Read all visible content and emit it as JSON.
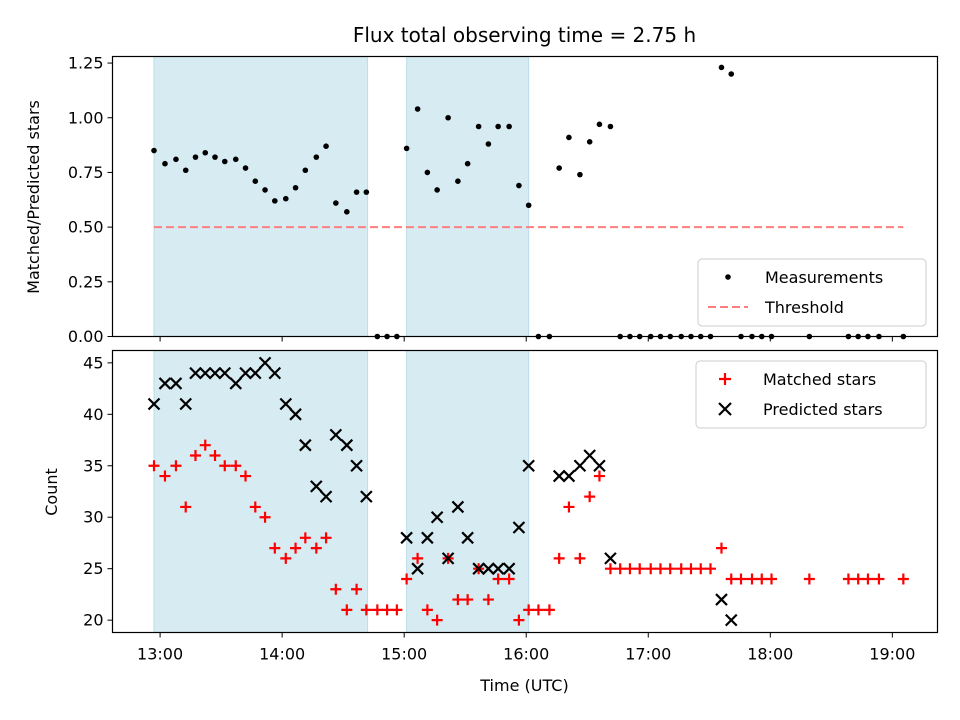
{
  "figure": {
    "title": "Flux total observing time = 2.75 h",
    "xlabel": "Time (UTC)",
    "x_tick_labels": [
      "13:00",
      "14:00",
      "15:00",
      "16:00",
      "17:00",
      "18:00",
      "19:00"
    ]
  },
  "chart_data": [
    {
      "type": "scatter",
      "ylabel": "Matched/Predicted stars",
      "x_unit": "hours UTC",
      "xlim": [
        12.61,
        19.37
      ],
      "ylim": [
        0,
        1.28
      ],
      "yticks": [
        "0.00",
        "0.25",
        "0.50",
        "0.75",
        "1.00",
        "1.25"
      ],
      "shaded_spans": [
        [
          12.95,
          14.7
        ],
        [
          15.02,
          16.02
        ]
      ],
      "shaded_color": "#add8e6",
      "legend_position": "lower right",
      "series": [
        {
          "name": "Measurements",
          "marker": "dot",
          "color": "#000000",
          "x": [
            12.95,
            13.04,
            13.13,
            13.21,
            13.29,
            13.37,
            13.45,
            13.53,
            13.62,
            13.7,
            13.78,
            13.86,
            13.94,
            14.03,
            14.11,
            14.19,
            14.28,
            14.36,
            14.44,
            14.53,
            14.61,
            14.69,
            14.78,
            14.86,
            14.94,
            15.02,
            15.11,
            15.19,
            15.27,
            15.36,
            15.44,
            15.52,
            15.61,
            15.69,
            15.77,
            15.86,
            15.94,
            16.02,
            16.1,
            16.19,
            16.27,
            16.35,
            16.44,
            16.52,
            16.6,
            16.69,
            16.77,
            16.85,
            16.93,
            17.02,
            17.1,
            17.18,
            17.27,
            17.35,
            17.43,
            17.51,
            17.6,
            17.68,
            17.76,
            17.85,
            17.93,
            18.01,
            18.32,
            18.64,
            18.72,
            18.8,
            18.89,
            19.09
          ],
          "y": [
            0.85,
            0.79,
            0.81,
            0.76,
            0.82,
            0.84,
            0.82,
            0.8,
            0.81,
            0.77,
            0.71,
            0.67,
            0.62,
            0.63,
            0.68,
            0.76,
            0.82,
            0.87,
            0.61,
            0.57,
            0.66,
            0.66,
            0.0,
            0.0,
            0.0,
            0.86,
            1.04,
            0.75,
            0.67,
            1.0,
            0.71,
            0.79,
            0.96,
            0.88,
            0.96,
            0.96,
            0.69,
            0.6,
            0.0,
            0.0,
            0.77,
            0.91,
            0.74,
            0.89,
            0.97,
            0.96,
            0.0,
            0.0,
            0.0,
            0.0,
            0.0,
            0.0,
            0.0,
            0.0,
            0.0,
            0.0,
            1.23,
            1.2,
            0.0,
            0.0,
            0.0,
            0.0,
            0.0,
            0.0,
            0.0,
            0.0,
            0.0,
            0.0
          ]
        },
        {
          "name": "Threshold",
          "marker": "dashed-line",
          "color": "#ff7f7f",
          "x": [
            12.95,
            19.09
          ],
          "y": [
            0.5,
            0.5
          ]
        }
      ]
    },
    {
      "type": "scatter",
      "ylabel": "Count",
      "x_unit": "hours UTC",
      "xlim": [
        12.61,
        19.37
      ],
      "ylim": [
        18.8,
        46.2
      ],
      "yticks": [
        "20",
        "25",
        "30",
        "35",
        "40",
        "45"
      ],
      "shaded_spans": [
        [
          12.95,
          14.7
        ],
        [
          15.02,
          16.02
        ]
      ],
      "shaded_color": "#add8e6",
      "legend_position": "upper right",
      "series": [
        {
          "name": "Matched stars",
          "marker": "plus",
          "color": "#ff0000",
          "x": [
            12.95,
            13.04,
            13.13,
            13.21,
            13.29,
            13.37,
            13.45,
            13.53,
            13.62,
            13.7,
            13.78,
            13.86,
            13.94,
            14.03,
            14.11,
            14.19,
            14.28,
            14.36,
            14.44,
            14.53,
            14.61,
            14.69,
            14.78,
            14.86,
            14.94,
            15.02,
            15.11,
            15.19,
            15.27,
            15.36,
            15.44,
            15.52,
            15.61,
            15.69,
            15.77,
            15.86,
            15.94,
            16.02,
            16.1,
            16.19,
            16.27,
            16.35,
            16.44,
            16.52,
            16.6,
            16.69,
            16.77,
            16.85,
            16.93,
            17.02,
            17.1,
            17.18,
            17.27,
            17.35,
            17.43,
            17.51,
            17.6,
            17.68,
            17.76,
            17.85,
            17.93,
            18.01,
            18.32,
            18.64,
            18.72,
            18.8,
            18.89,
            19.09
          ],
          "y": [
            35,
            34,
            35,
            31,
            36,
            37,
            36,
            35,
            35,
            34,
            31,
            30,
            27,
            26,
            27,
            28,
            27,
            28,
            23,
            21,
            23,
            21,
            21,
            21,
            21,
            24,
            26,
            21,
            20,
            26,
            22,
            22,
            25,
            22,
            24,
            24,
            20,
            21,
            21,
            21,
            26,
            31,
            26,
            32,
            34,
            25,
            25,
            25,
            25,
            25,
            25,
            25,
            25,
            25,
            25,
            25,
            27,
            24,
            24,
            24,
            24,
            24,
            24,
            24,
            24,
            24,
            24,
            24
          ]
        },
        {
          "name": "Predicted stars",
          "marker": "x",
          "color": "#000000",
          "x": [
            12.95,
            13.04,
            13.13,
            13.21,
            13.29,
            13.37,
            13.45,
            13.53,
            13.62,
            13.7,
            13.78,
            13.86,
            13.94,
            14.03,
            14.11,
            14.19,
            14.28,
            14.36,
            14.44,
            14.53,
            14.61,
            14.69,
            15.02,
            15.11,
            15.19,
            15.27,
            15.36,
            15.44,
            15.52,
            15.61,
            15.69,
            15.77,
            15.86,
            15.94,
            16.02,
            16.27,
            16.35,
            16.44,
            16.52,
            16.6,
            16.69,
            17.6,
            17.68
          ],
          "y": [
            41,
            43,
            43,
            41,
            44,
            44,
            44,
            44,
            43,
            44,
            44,
            45,
            44,
            41,
            40,
            37,
            33,
            32,
            38,
            37,
            35,
            32,
            28,
            25,
            28,
            30,
            26,
            31,
            28,
            25,
            25,
            25,
            25,
            29,
            35,
            34,
            34,
            35,
            36,
            35,
            26,
            22,
            20
          ]
        }
      ]
    }
  ]
}
